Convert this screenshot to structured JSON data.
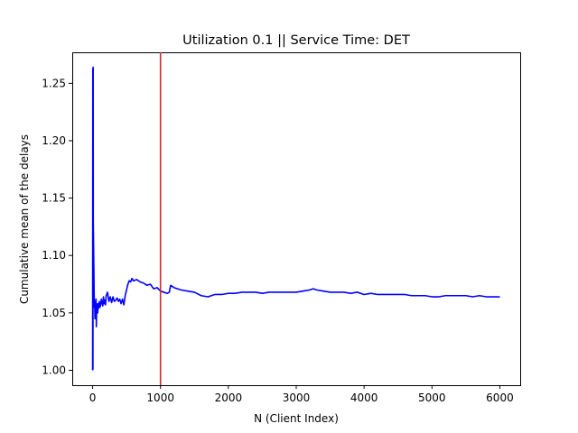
{
  "chart_data": {
    "type": "line",
    "title": "Utilization 0.1 || Service Time: DET",
    "xlabel": "N (Client Index)",
    "ylabel": "Cumulative mean of the delays",
    "xlim": [
      -300,
      6300
    ],
    "ylim": [
      0.987,
      1.277
    ],
    "xticks": [
      0,
      1000,
      2000,
      3000,
      4000,
      5000,
      6000
    ],
    "yticks": [
      1.0,
      1.05,
      1.1,
      1.15,
      1.2,
      1.25
    ],
    "grid": false,
    "legend": "none",
    "series": [
      {
        "color": "#0000ff",
        "x": [
          0,
          3,
          5,
          8,
          10,
          14,
          18,
          22,
          26,
          30,
          35,
          40,
          45,
          50,
          55,
          60,
          65,
          70,
          75,
          80,
          90,
          100,
          110,
          120,
          130,
          140,
          150,
          160,
          170,
          180,
          190,
          200,
          220,
          240,
          260,
          280,
          300,
          320,
          340,
          360,
          380,
          400,
          420,
          440,
          460,
          480,
          500,
          520,
          540,
          560,
          580,
          600,
          650,
          700,
          750,
          800,
          850,
          900,
          950,
          1000,
          1050,
          1100,
          1130,
          1150,
          1200,
          1300,
          1400,
          1500,
          1600,
          1700,
          1800,
          1900,
          2000,
          2100,
          2200,
          2300,
          2400,
          2500,
          2600,
          2700,
          2800,
          2900,
          3000,
          3100,
          3200,
          3250,
          3300,
          3400,
          3500,
          3600,
          3700,
          3800,
          3900,
          4000,
          4100,
          4200,
          4300,
          4400,
          4500,
          4600,
          4700,
          4800,
          4900,
          5000,
          5100,
          5200,
          5300,
          5400,
          5500,
          5600,
          5700,
          5800,
          5900,
          6000
        ],
        "values": [
          1.0,
          1.263,
          1.001,
          1.264,
          1.13,
          1.11,
          1.09,
          1.07,
          1.055,
          1.06,
          1.045,
          1.057,
          1.052,
          1.062,
          1.038,
          1.058,
          1.052,
          1.055,
          1.05,
          1.058,
          1.054,
          1.06,
          1.055,
          1.058,
          1.062,
          1.058,
          1.056,
          1.064,
          1.058,
          1.061,
          1.057,
          1.065,
          1.068,
          1.06,
          1.064,
          1.059,
          1.064,
          1.06,
          1.061,
          1.063,
          1.06,
          1.062,
          1.058,
          1.062,
          1.057,
          1.065,
          1.07,
          1.075,
          1.078,
          1.077,
          1.08,
          1.078,
          1.079,
          1.077,
          1.076,
          1.074,
          1.075,
          1.071,
          1.072,
          1.069,
          1.068,
          1.067,
          1.068,
          1.074,
          1.072,
          1.07,
          1.069,
          1.068,
          1.065,
          1.064,
          1.066,
          1.066,
          1.067,
          1.067,
          1.068,
          1.068,
          1.068,
          1.067,
          1.068,
          1.068,
          1.068,
          1.068,
          1.068,
          1.069,
          1.07,
          1.071,
          1.07,
          1.069,
          1.068,
          1.068,
          1.068,
          1.067,
          1.068,
          1.066,
          1.067,
          1.066,
          1.066,
          1.066,
          1.066,
          1.066,
          1.065,
          1.065,
          1.065,
          1.064,
          1.064,
          1.065,
          1.065,
          1.065,
          1.065,
          1.064,
          1.065,
          1.064,
          1.064,
          1.064
        ]
      }
    ],
    "vline": {
      "x": 1000,
      "color": "#d62728"
    }
  }
}
